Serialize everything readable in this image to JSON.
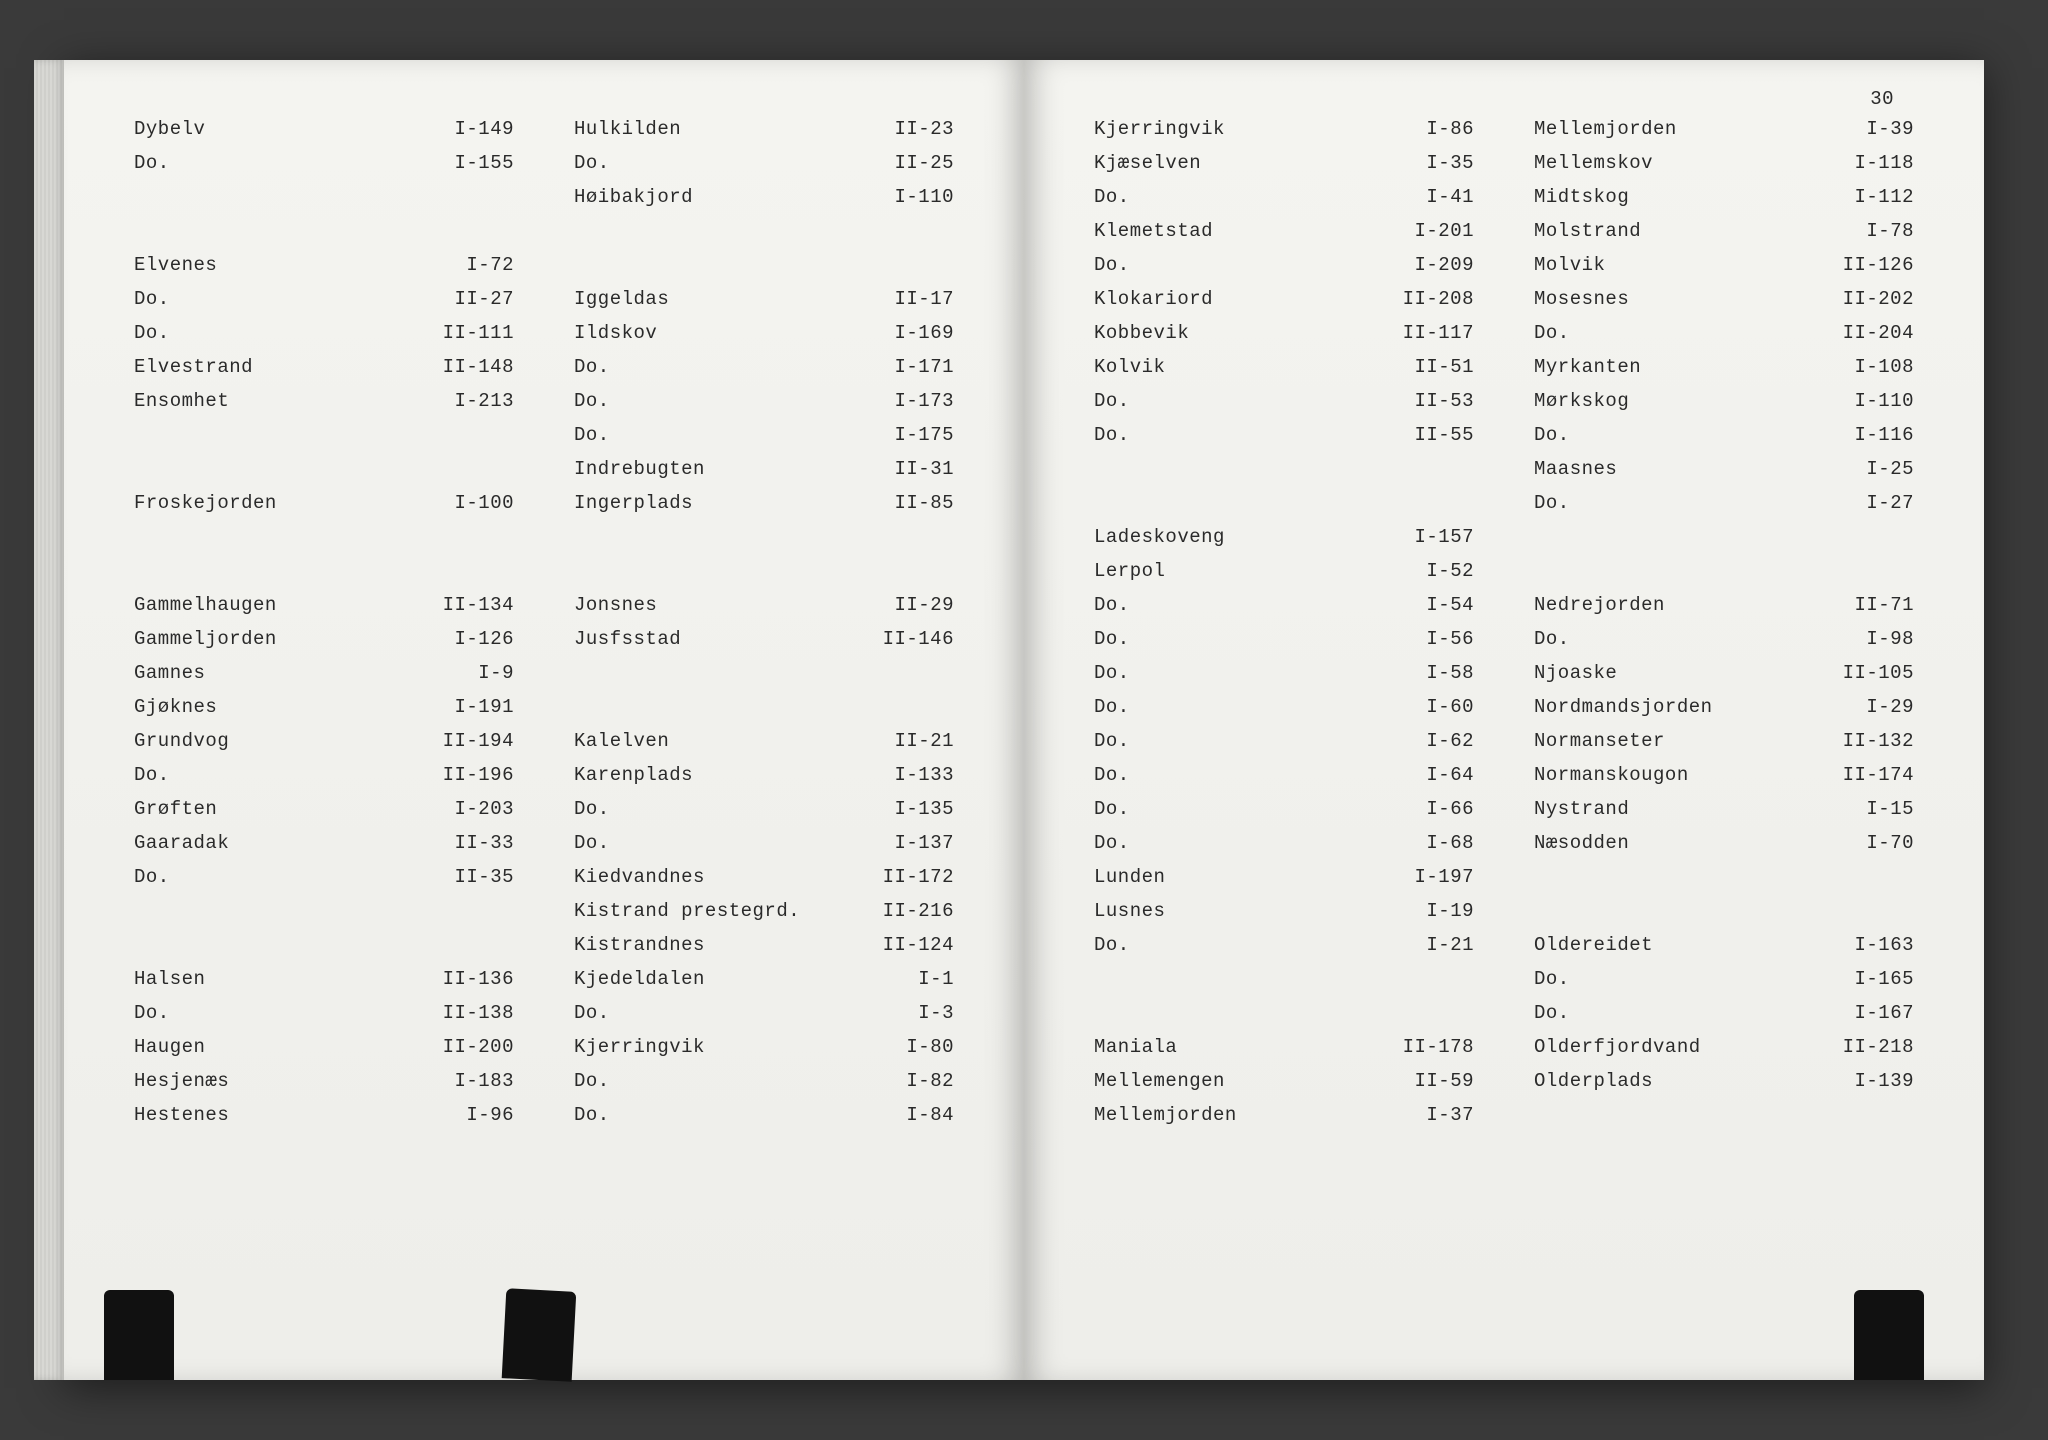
{
  "page_number": "30",
  "left_page": {
    "col1": [
      {
        "name": "Dybelv",
        "ref": "I-149"
      },
      {
        "name": "Do.",
        "ref": "I-155"
      },
      {
        "gap": true
      },
      {
        "gap": true
      },
      {
        "name": "Elvenes",
        "ref": "I-72"
      },
      {
        "name": "Do.",
        "ref": "II-27"
      },
      {
        "name": "Do.",
        "ref": "II-111"
      },
      {
        "name": "Elvestrand",
        "ref": "II-148"
      },
      {
        "name": "Ensomhet",
        "ref": "I-213"
      },
      {
        "gap": true
      },
      {
        "gap": true
      },
      {
        "name": "Froskejorden",
        "ref": "I-100"
      },
      {
        "gap": true
      },
      {
        "gap": true
      },
      {
        "name": "Gammelhaugen",
        "ref": "II-134"
      },
      {
        "name": "Gammeljorden",
        "ref": "I-126"
      },
      {
        "name": "Gamnes",
        "ref": "I-9"
      },
      {
        "name": "Gjøknes",
        "ref": "I-191"
      },
      {
        "name": "Grundvog",
        "ref": "II-194"
      },
      {
        "name": "Do.",
        "ref": "II-196"
      },
      {
        "name": "Grøften",
        "ref": "I-203"
      },
      {
        "name": "Gaaradak",
        "ref": "II-33"
      },
      {
        "name": "Do.",
        "ref": "II-35"
      },
      {
        "gap": true
      },
      {
        "gap": true
      },
      {
        "name": "Halsen",
        "ref": "II-136"
      },
      {
        "name": "Do.",
        "ref": "II-138"
      },
      {
        "name": "Haugen",
        "ref": "II-200"
      },
      {
        "name": "Hesjenæs",
        "ref": "I-183"
      },
      {
        "name": "Hestenes",
        "ref": "I-96"
      }
    ],
    "col2": [
      {
        "name": "Hulkilden",
        "ref": "II-23"
      },
      {
        "name": "Do.",
        "ref": "II-25"
      },
      {
        "name": "Høibakjord",
        "ref": "I-110"
      },
      {
        "gap": true
      },
      {
        "gap": true
      },
      {
        "name": "Iggeldas",
        "ref": "II-17"
      },
      {
        "name": "Ildskov",
        "ref": "I-169"
      },
      {
        "name": "Do.",
        "ref": "I-171"
      },
      {
        "name": "Do.",
        "ref": "I-173"
      },
      {
        "name": "Do.",
        "ref": "I-175"
      },
      {
        "name": "Indrebugten",
        "ref": "II-31"
      },
      {
        "name": "Ingerplads",
        "ref": "II-85"
      },
      {
        "gap": true
      },
      {
        "gap": true
      },
      {
        "name": "Jonsnes",
        "ref": "II-29"
      },
      {
        "name": "Jusfsstad",
        "ref": "II-146"
      },
      {
        "gap": true
      },
      {
        "gap": true
      },
      {
        "name": "Kalelven",
        "ref": "II-21"
      },
      {
        "name": "Karenplads",
        "ref": "I-133"
      },
      {
        "name": "Do.",
        "ref": "I-135"
      },
      {
        "name": "Do.",
        "ref": "I-137"
      },
      {
        "name": "Kiedvandnes",
        "ref": "II-172"
      },
      {
        "name": "Kistrand prestegrd.",
        "ref": "II-216"
      },
      {
        "name": "Kistrandnes",
        "ref": "II-124"
      },
      {
        "name": "Kjedeldalen",
        "ref": "I-1"
      },
      {
        "name": "Do.",
        "ref": "I-3"
      },
      {
        "name": "Kjerringvik",
        "ref": "I-80"
      },
      {
        "name": "Do.",
        "ref": "I-82"
      },
      {
        "name": "Do.",
        "ref": "I-84"
      }
    ]
  },
  "right_page": {
    "col1": [
      {
        "name": "Kjerringvik",
        "ref": "I-86"
      },
      {
        "name": "Kjæselven",
        "ref": "I-35"
      },
      {
        "name": "Do.",
        "ref": "I-41"
      },
      {
        "name": "Klemetstad",
        "ref": "I-201"
      },
      {
        "name": "Do.",
        "ref": "I-209"
      },
      {
        "name": "Klokariord",
        "ref": "II-208"
      },
      {
        "name": "Kobbevik",
        "ref": "II-117"
      },
      {
        "name": "Kolvik",
        "ref": "II-51"
      },
      {
        "name": "Do.",
        "ref": "II-53"
      },
      {
        "name": "Do.",
        "ref": "II-55"
      },
      {
        "gap": true
      },
      {
        "gap": true
      },
      {
        "name": "Ladeskoveng",
        "ref": "I-157"
      },
      {
        "name": "Lerpol",
        "ref": "I-52"
      },
      {
        "name": "Do.",
        "ref": "I-54"
      },
      {
        "name": "Do.",
        "ref": "I-56"
      },
      {
        "name": "Do.",
        "ref": "I-58"
      },
      {
        "name": "Do.",
        "ref": "I-60"
      },
      {
        "name": "Do.",
        "ref": "I-62"
      },
      {
        "name": "Do.",
        "ref": "I-64"
      },
      {
        "name": "Do.",
        "ref": "I-66"
      },
      {
        "name": "Do.",
        "ref": "I-68"
      },
      {
        "name": "Lunden",
        "ref": "I-197"
      },
      {
        "name": "Lusnes",
        "ref": "I-19"
      },
      {
        "name": "Do.",
        "ref": "I-21"
      },
      {
        "gap": true
      },
      {
        "gap": true
      },
      {
        "name": "Maniala",
        "ref": "II-178"
      },
      {
        "name": "Mellemengen",
        "ref": "II-59"
      },
      {
        "name": "Mellemjorden",
        "ref": "I-37"
      }
    ],
    "col2": [
      {
        "name": "Mellemjorden",
        "ref": "I-39"
      },
      {
        "name": "Mellemskov",
        "ref": "I-118"
      },
      {
        "name": "Midtskog",
        "ref": "I-112"
      },
      {
        "name": "Molstrand",
        "ref": "I-78"
      },
      {
        "name": "Molvik",
        "ref": "II-126"
      },
      {
        "name": "Mosesnes",
        "ref": "II-202"
      },
      {
        "name": "Do.",
        "ref": "II-204"
      },
      {
        "name": "Myrkanten",
        "ref": "I-108"
      },
      {
        "name": "Mørkskog",
        "ref": "I-110"
      },
      {
        "name": "Do.",
        "ref": "I-116"
      },
      {
        "name": "Maasnes",
        "ref": "I-25"
      },
      {
        "name": "Do.",
        "ref": "I-27"
      },
      {
        "gap": true
      },
      {
        "gap": true
      },
      {
        "name": "Nedrejorden",
        "ref": "II-71"
      },
      {
        "name": "Do.",
        "ref": "I-98"
      },
      {
        "name": "Njoaske",
        "ref": "II-105"
      },
      {
        "name": "Nordmandsjorden",
        "ref": "I-29"
      },
      {
        "name": "Normanseter",
        "ref": "II-132"
      },
      {
        "name": "Normanskougon",
        "ref": "II-174"
      },
      {
        "name": "Nystrand",
        "ref": "I-15"
      },
      {
        "name": "Næsodden",
        "ref": "I-70"
      },
      {
        "gap": true
      },
      {
        "gap": true
      },
      {
        "name": "Oldereidet",
        "ref": "I-163"
      },
      {
        "name": "Do.",
        "ref": "I-165"
      },
      {
        "name": "Do.",
        "ref": "I-167"
      },
      {
        "name": "Olderfjordvand",
        "ref": "II-218"
      },
      {
        "name": "Olderplads",
        "ref": "I-139"
      }
    ]
  }
}
